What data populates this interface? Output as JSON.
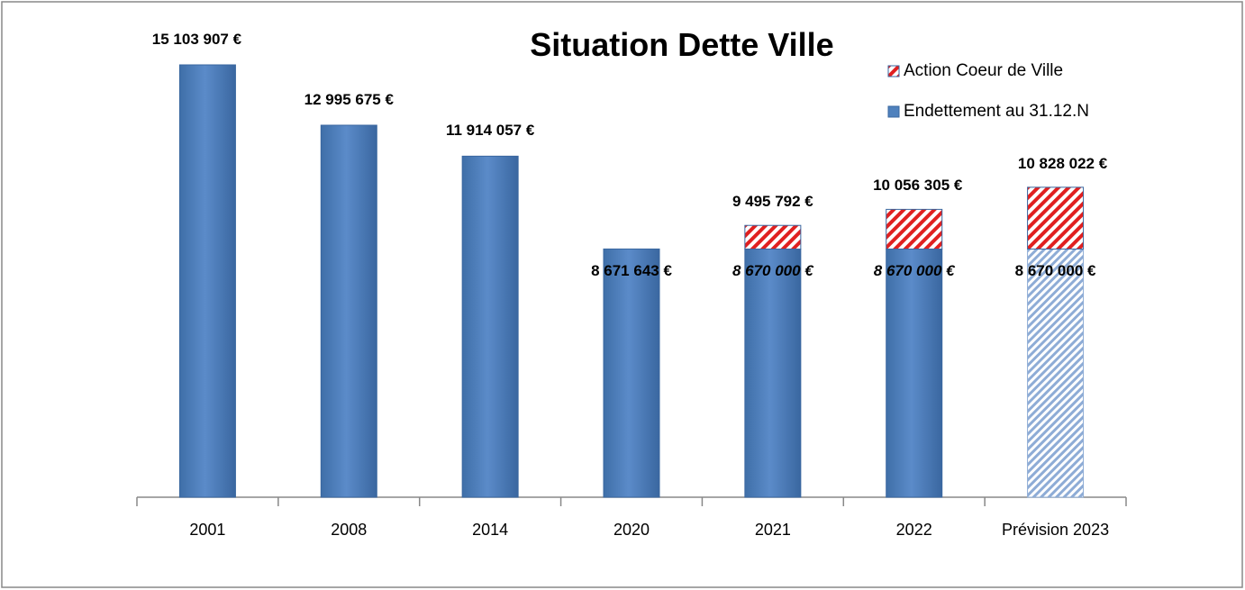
{
  "chart_data": {
    "type": "stacked_bar",
    "title": "Situation Dette Ville",
    "categories": [
      "2001",
      "2008",
      "2014",
      "2020",
      "2021",
      "2022",
      "Prévision 2023"
    ],
    "series": [
      {
        "name": "Endettement au 31.12.N",
        "color": "#4f81bd",
        "values": [
          15103907,
          12995675,
          11914057,
          8671643,
          8670000,
          8670000,
          8670000
        ],
        "value_labels": [
          "15 103 907 €",
          "12 995 675 €",
          "11 914 057 €",
          "8 671 643 €",
          "8 670 000 €",
          "8 670 000 €",
          "8 670 000 €"
        ]
      },
      {
        "name": "Action Coeur de Ville",
        "color": "#e02020",
        "values": [
          null,
          null,
          null,
          null,
          825792,
          1386305,
          2158022
        ]
      }
    ],
    "totals": [
      null,
      null,
      null,
      null,
      9495792,
      10056305,
      10828022
    ],
    "total_labels": [
      null,
      null,
      null,
      null,
      "9 495 792 €",
      "10 056 305 €",
      "10 828 022 €"
    ]
  }
}
